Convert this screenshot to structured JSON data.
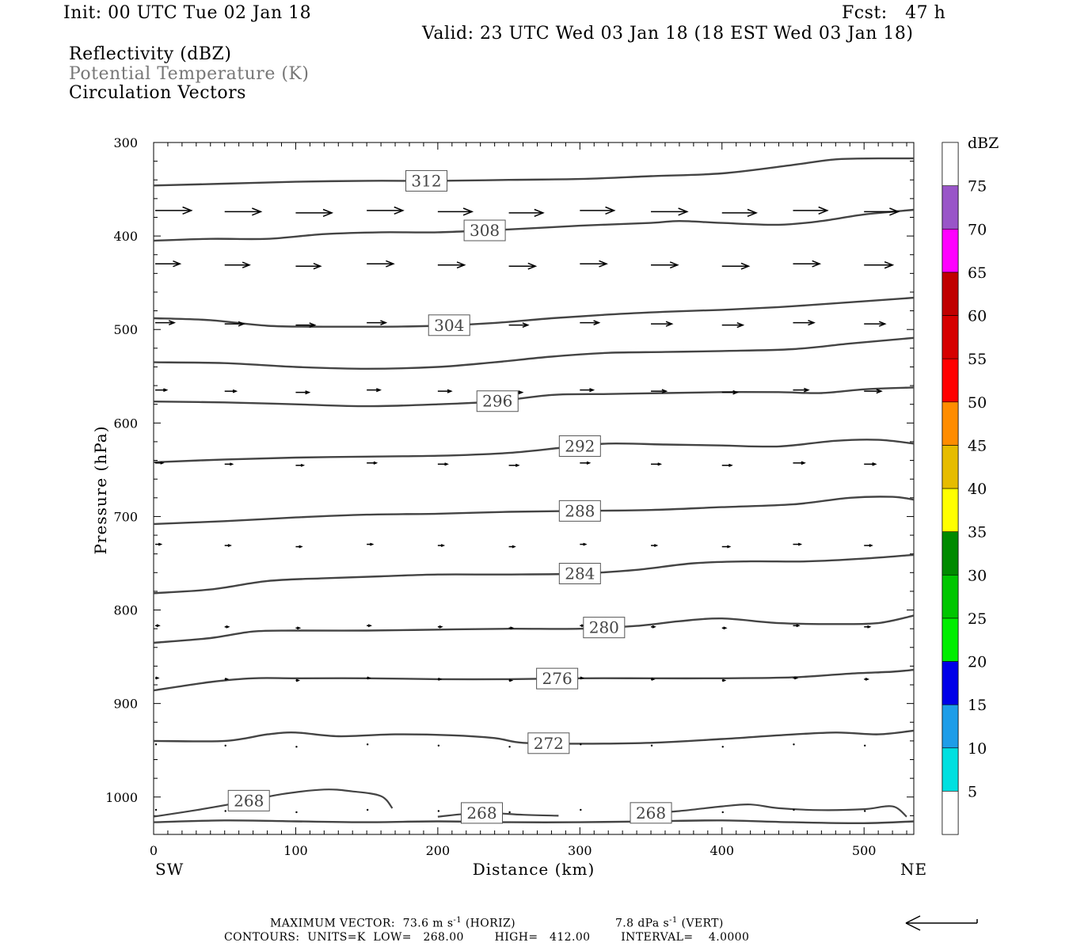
{
  "header": {
    "init": "Init: 00 UTC Tue 02 Jan 18",
    "fcst": "Fcst:   47 h",
    "valid": "Valid: 23 UTC Wed 03 Jan 18 (18 EST Wed 03 Jan 18)",
    "fields": [
      "Reflectivity (dBZ)",
      "Potential Temperature (K)",
      "Circulation Vectors"
    ]
  },
  "footer": {
    "max_vector_prefix": "MAXIMUM VECTOR:  73.6 m s",
    "max_vector_horiz": " (HORIZ)",
    "max_vector_vert_prefix": "7.8 dPa s",
    "max_vector_vert": " (VERT)",
    "exponent": "-1",
    "contours": "CONTOURS:  UNITS=K  LOW=   268.00        HIGH=   412.00        INTERVAL=    4.0000"
  },
  "chart_data": {
    "type": "cross-section",
    "xlabel": "Distance (km)",
    "ylabel": "Pressure (hPa)",
    "x_ticks": [
      0,
      100,
      200,
      300,
      400,
      500
    ],
    "y_ticks": [
      300,
      400,
      500,
      600,
      700,
      800,
      900,
      1000
    ],
    "xlim": [
      0,
      535
    ],
    "ylim": [
      300,
      1040
    ],
    "y_reversed": true,
    "left_label": "SW",
    "right_label": "NE",
    "colorbar": {
      "unit": "dBZ",
      "levels": [
        5,
        10,
        15,
        20,
        25,
        30,
        35,
        40,
        45,
        50,
        55,
        60,
        65,
        70,
        75
      ],
      "colors": [
        "#00e0e0",
        "#1e9de8",
        "#0000e8",
        "#00ee00",
        "#00c600",
        "#008a00",
        "#ffff00",
        "#e6bc00",
        "#ff8c00",
        "#ff0000",
        "#d60000",
        "#c00000",
        "#ff00ff",
        "#9955c8",
        "#ffffff"
      ]
    },
    "theta_contours": [
      {
        "value": 312,
        "label_x": 192,
        "points": [
          [
            0,
            346
          ],
          [
            50,
            344
          ],
          [
            100,
            342
          ],
          [
            150,
            341
          ],
          [
            200,
            341
          ],
          [
            250,
            340
          ],
          [
            300,
            339
          ],
          [
            350,
            336
          ],
          [
            400,
            333
          ],
          [
            450,
            324
          ],
          [
            480,
            318
          ],
          [
            510,
            317
          ],
          [
            535,
            317
          ]
        ]
      },
      {
        "value": 308,
        "label_x": 233,
        "points": [
          [
            0,
            405
          ],
          [
            40,
            403
          ],
          [
            80,
            403
          ],
          [
            120,
            398
          ],
          [
            160,
            396
          ],
          [
            200,
            396
          ],
          [
            250,
            393
          ],
          [
            300,
            389
          ],
          [
            350,
            386
          ],
          [
            370,
            384
          ],
          [
            400,
            386
          ],
          [
            440,
            388
          ],
          [
            470,
            384
          ],
          [
            500,
            377
          ],
          [
            535,
            372
          ]
        ]
      },
      {
        "value": 304,
        "label_x": 208,
        "points": [
          [
            0,
            488
          ],
          [
            40,
            490
          ],
          [
            80,
            496
          ],
          [
            120,
            497
          ],
          [
            160,
            497
          ],
          [
            200,
            496
          ],
          [
            240,
            493
          ],
          [
            280,
            488
          ],
          [
            320,
            484
          ],
          [
            360,
            481
          ],
          [
            400,
            479
          ],
          [
            440,
            476
          ],
          [
            480,
            472
          ],
          [
            535,
            466
          ]
        ]
      },
      {
        "value": 300,
        "label_x": null,
        "points": [
          [
            0,
            535
          ],
          [
            50,
            536
          ],
          [
            100,
            540
          ],
          [
            150,
            542
          ],
          [
            200,
            540
          ],
          [
            240,
            535
          ],
          [
            280,
            529
          ],
          [
            320,
            525
          ],
          [
            360,
            524
          ],
          [
            400,
            523
          ],
          [
            450,
            521
          ],
          [
            490,
            515
          ],
          [
            535,
            509
          ]
        ]
      },
      {
        "value": 296,
        "label_x": 242,
        "points": [
          [
            0,
            577
          ],
          [
            50,
            578
          ],
          [
            100,
            580
          ],
          [
            150,
            582
          ],
          [
            200,
            580
          ],
          [
            240,
            577
          ],
          [
            280,
            570
          ],
          [
            320,
            569
          ],
          [
            360,
            568
          ],
          [
            400,
            567
          ],
          [
            440,
            567
          ],
          [
            470,
            568
          ],
          [
            500,
            564
          ],
          [
            535,
            562
          ]
        ]
      },
      {
        "value": 292,
        "label_x": 300,
        "points": [
          [
            0,
            642
          ],
          [
            50,
            639
          ],
          [
            100,
            637
          ],
          [
            150,
            636
          ],
          [
            200,
            635
          ],
          [
            250,
            632
          ],
          [
            290,
            626
          ],
          [
            320,
            622
          ],
          [
            360,
            623
          ],
          [
            400,
            624
          ],
          [
            440,
            625
          ],
          [
            480,
            619
          ],
          [
            510,
            618
          ],
          [
            535,
            622
          ]
        ]
      },
      {
        "value": 288,
        "label_x": 300,
        "points": [
          [
            0,
            708
          ],
          [
            50,
            705
          ],
          [
            100,
            701
          ],
          [
            150,
            698
          ],
          [
            200,
            697
          ],
          [
            250,
            695
          ],
          [
            300,
            694
          ],
          [
            350,
            693
          ],
          [
            400,
            690
          ],
          [
            450,
            687
          ],
          [
            490,
            680
          ],
          [
            520,
            679
          ],
          [
            535,
            682
          ]
        ]
      },
      {
        "value": 284,
        "label_x": 300,
        "points": [
          [
            0,
            782
          ],
          [
            40,
            778
          ],
          [
            80,
            769
          ],
          [
            120,
            766
          ],
          [
            160,
            764
          ],
          [
            200,
            762
          ],
          [
            250,
            762
          ],
          [
            300,
            761
          ],
          [
            340,
            757
          ],
          [
            380,
            750
          ],
          [
            420,
            748
          ],
          [
            460,
            748
          ],
          [
            500,
            745
          ],
          [
            535,
            741
          ]
        ]
      },
      {
        "value": 280,
        "label_x": 317,
        "points": [
          [
            0,
            835
          ],
          [
            40,
            830
          ],
          [
            70,
            823
          ],
          [
            100,
            822
          ],
          [
            150,
            822
          ],
          [
            200,
            821
          ],
          [
            250,
            820
          ],
          [
            300,
            820
          ],
          [
            340,
            817
          ],
          [
            370,
            812
          ],
          [
            400,
            809
          ],
          [
            440,
            814
          ],
          [
            480,
            815
          ],
          [
            510,
            814
          ],
          [
            535,
            806
          ]
        ]
      },
      {
        "value": 276,
        "label_x": 284,
        "points": [
          [
            0,
            886
          ],
          [
            40,
            877
          ],
          [
            70,
            873
          ],
          [
            100,
            873
          ],
          [
            150,
            873
          ],
          [
            200,
            874
          ],
          [
            250,
            874
          ],
          [
            300,
            873
          ],
          [
            350,
            873
          ],
          [
            400,
            873
          ],
          [
            450,
            872
          ],
          [
            490,
            868
          ],
          [
            520,
            866
          ],
          [
            535,
            864
          ]
        ]
      },
      {
        "value": 272,
        "label_x": 278,
        "points": [
          [
            0,
            940
          ],
          [
            50,
            940
          ],
          [
            80,
            933
          ],
          [
            100,
            931
          ],
          [
            130,
            935
          ],
          [
            170,
            933
          ],
          [
            210,
            934
          ],
          [
            240,
            937
          ],
          [
            260,
            942
          ],
          [
            300,
            943
          ],
          [
            350,
            942
          ],
          [
            400,
            938
          ],
          [
            440,
            934
          ],
          [
            480,
            931
          ],
          [
            510,
            933
          ],
          [
            535,
            929
          ]
        ]
      },
      {
        "value": 268,
        "label_x": null,
        "points": [
          [
            0,
            1027
          ],
          [
            50,
            1025
          ],
          [
            100,
            1026
          ],
          [
            150,
            1027
          ],
          [
            200,
            1026
          ],
          [
            250,
            1027
          ],
          [
            300,
            1027
          ],
          [
            350,
            1026
          ],
          [
            400,
            1025
          ],
          [
            450,
            1027
          ],
          [
            500,
            1028
          ],
          [
            535,
            1026
          ]
        ]
      }
    ],
    "theta_268_pockets": [
      {
        "label_x": 67,
        "points": [
          [
            0,
            1021
          ],
          [
            30,
            1014
          ],
          [
            60,
            1006
          ],
          [
            90,
            997
          ],
          [
            120,
            992
          ],
          [
            140,
            994
          ],
          [
            160,
            999
          ],
          [
            168,
            1012
          ]
        ]
      },
      {
        "label_x": 231,
        "points": [
          [
            200,
            1021
          ],
          [
            230,
            1017
          ],
          [
            260,
            1019
          ],
          [
            285,
            1020
          ]
        ]
      },
      {
        "label_x": 350,
        "points": [
          [
            340,
            1018
          ],
          [
            370,
            1015
          ],
          [
            400,
            1010
          ],
          [
            420,
            1008
          ],
          [
            440,
            1012
          ],
          [
            470,
            1014
          ],
          [
            500,
            1013
          ],
          [
            520,
            1010
          ],
          [
            530,
            1021
          ]
        ]
      }
    ],
    "labels_268_x": [
      67,
      231,
      350
    ],
    "circulation_vectors": {
      "columns_km": [
        0,
        50,
        100,
        150,
        200,
        250,
        300,
        350,
        400,
        450,
        500
      ],
      "levels": [
        {
          "p": 374,
          "u": [
            38,
            38,
            38,
            38,
            36,
            36,
            36,
            38,
            36,
            36,
            36
          ]
        },
        {
          "p": 431,
          "u": [
            26,
            26,
            26,
            28,
            28,
            28,
            28,
            28,
            28,
            28,
            30
          ]
        },
        {
          "p": 494,
          "u": [
            20,
            20,
            20,
            20,
            20,
            20,
            20,
            22,
            22,
            22,
            22
          ]
        },
        {
          "p": 566,
          "u": [
            12,
            12,
            14,
            14,
            14,
            14,
            14,
            16,
            16,
            16,
            18
          ]
        },
        {
          "p": 644,
          "u": [
            8,
            8,
            8,
            10,
            10,
            10,
            10,
            10,
            10,
            12,
            12
          ]
        },
        {
          "p": 731,
          "u": [
            6,
            6,
            6,
            6,
            6,
            6,
            6,
            6,
            8,
            8,
            8
          ]
        },
        {
          "p": 818,
          "u": [
            4,
            4,
            4,
            4,
            4,
            4,
            4,
            4,
            4,
            6,
            6
          ]
        },
        {
          "p": 874,
          "u": [
            3,
            3,
            3,
            3,
            3,
            3,
            3,
            3,
            3,
            4,
            4
          ]
        },
        {
          "p": 945,
          "u": [
            1,
            1,
            1,
            1,
            1,
            1,
            1,
            2,
            2,
            2,
            2
          ]
        },
        {
          "p": 1015,
          "u": [
            1,
            1,
            1,
            1,
            1,
            1,
            1,
            1,
            1,
            1,
            1
          ]
        }
      ]
    },
    "max_vector": {
      "horiz": "73.6 m s-1",
      "vert": "7.8 dPa s-1"
    }
  }
}
